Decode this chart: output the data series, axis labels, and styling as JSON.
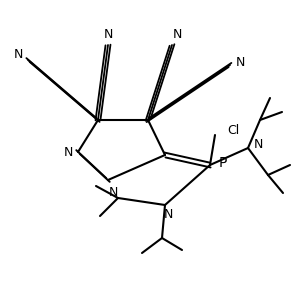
{
  "background_color": "#ffffff",
  "line_color": "#000000",
  "lw": 1.5,
  "figsize": [
    2.96,
    3.02
  ],
  "dpi": 100,
  "xlim": [
    0,
    296
  ],
  "ylim": [
    0,
    302
  ]
}
